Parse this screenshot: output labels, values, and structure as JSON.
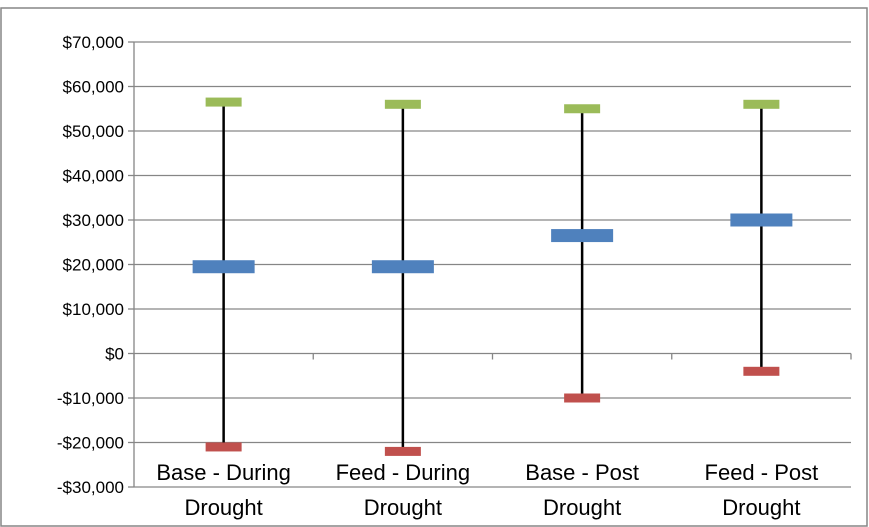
{
  "chart_data": {
    "type": "high-low-close",
    "title": "",
    "xlabel": "",
    "ylabel": "",
    "ylim": [
      -30000,
      70000
    ],
    "y_ticks": [
      70000,
      60000,
      50000,
      40000,
      30000,
      20000,
      10000,
      0,
      -10000,
      -20000,
      -30000
    ],
    "y_tick_labels": [
      "$70,000",
      "$60,000",
      "$50,000",
      "$40,000",
      "$30,000",
      "$20,000",
      "$10,000",
      "$0",
      "-$10,000",
      "-$20,000",
      "-$30,000"
    ],
    "grid": true,
    "legend": "none",
    "categories": [
      {
        "line1": "Base - During",
        "line2": "Drought"
      },
      {
        "line1": "Feed - During",
        "line2": "Drought"
      },
      {
        "line1": "Base - Post",
        "line2": "Drought"
      },
      {
        "line1": "Feed - Post",
        "line2": "Drought"
      }
    ],
    "high": [
      56500,
      56000,
      55000,
      56000
    ],
    "mid": [
      19500,
      19500,
      26500,
      30000
    ],
    "low": [
      -21000,
      -22000,
      -10000,
      -4000
    ],
    "colors": {
      "high": "#9BBB59",
      "mid": "#4F81BD",
      "low": "#C0504D",
      "whisker": "#000000",
      "grid": "#868686",
      "frame": "#868686"
    }
  }
}
